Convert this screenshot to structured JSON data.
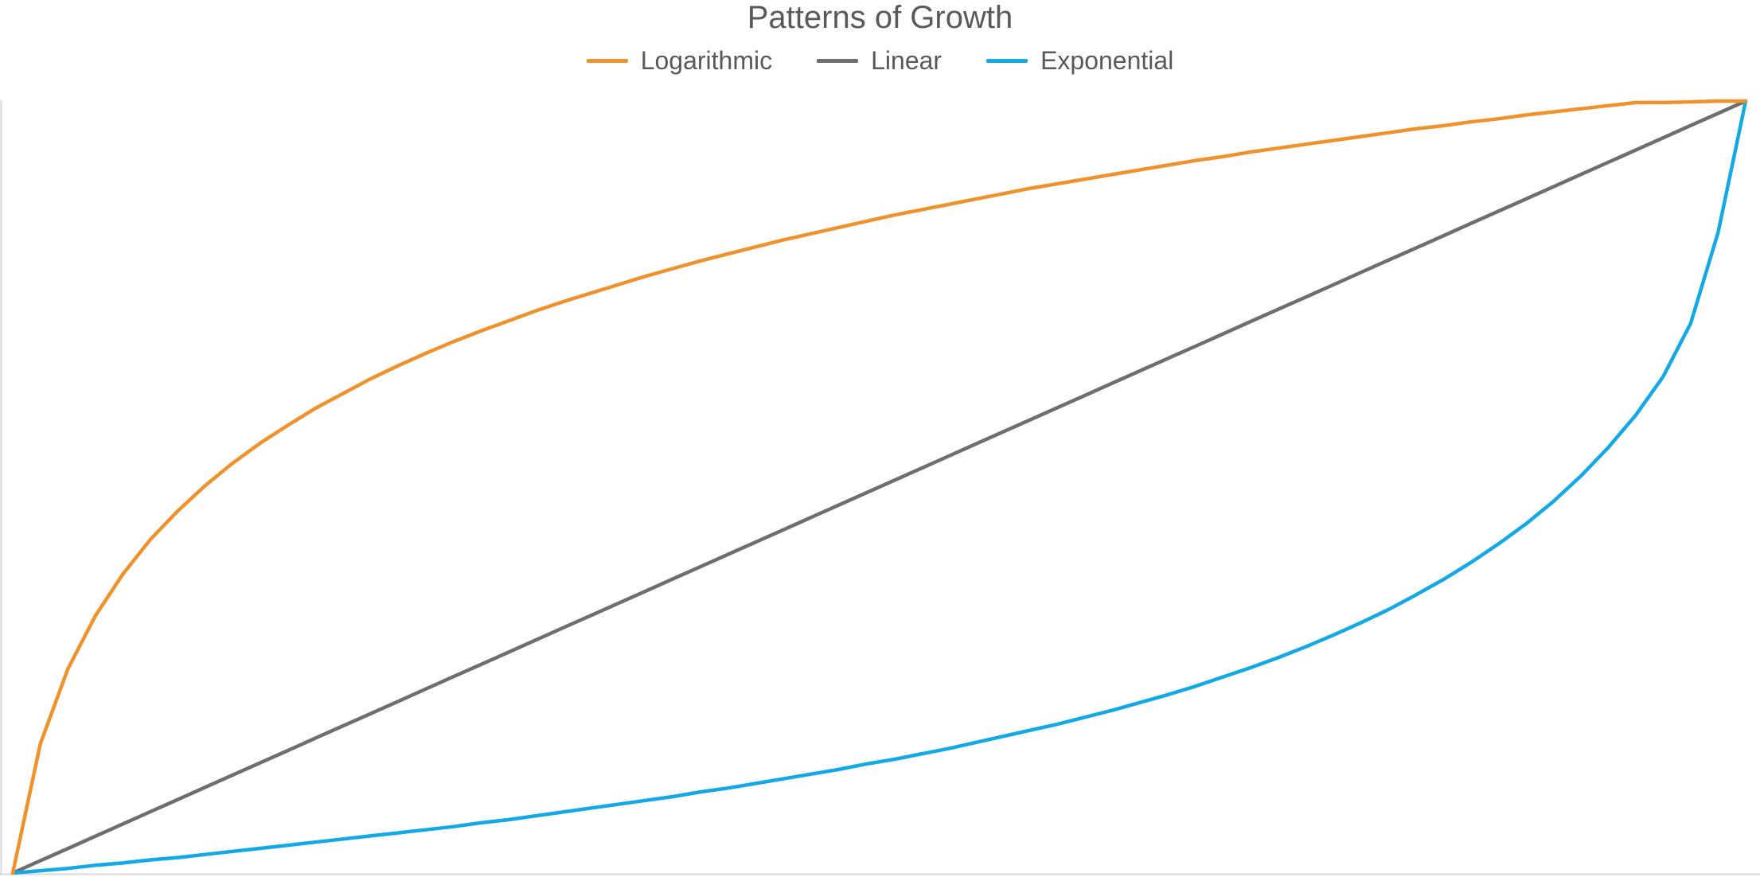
{
  "chart_data": {
    "type": "line",
    "title": "Patterns of Growth",
    "xlabel": "",
    "ylabel": "",
    "x": [
      0,
      1,
      2,
      3,
      4,
      5,
      6,
      7,
      8,
      9,
      10,
      11,
      12,
      13,
      14,
      15,
      16,
      17,
      18,
      19,
      20,
      21,
      22,
      23,
      24,
      25,
      26,
      27,
      28,
      29,
      30,
      31,
      32,
      33,
      34,
      35,
      36,
      37,
      38,
      39,
      40,
      41,
      42,
      43,
      44,
      45,
      46,
      47,
      48,
      49,
      50,
      51,
      52,
      53,
      54,
      55,
      56,
      57,
      58,
      59,
      60,
      61,
      62,
      63
    ],
    "xlim": [
      0,
      63
    ],
    "ylim": [
      0,
      1
    ],
    "grid": false,
    "legend_position": "top-center",
    "series": [
      {
        "name": "Logarithmic",
        "color": "#F0922B",
        "values": [
          0,
          0.167,
          0.264,
          0.333,
          0.387,
          0.432,
          0.469,
          0.502,
          0.531,
          0.557,
          0.58,
          0.602,
          0.621,
          0.64,
          0.657,
          0.673,
          0.688,
          0.702,
          0.715,
          0.728,
          0.74,
          0.751,
          0.762,
          0.773,
          0.783,
          0.793,
          0.802,
          0.811,
          0.82,
          0.828,
          0.836,
          0.844,
          0.852,
          0.859,
          0.866,
          0.873,
          0.88,
          0.887,
          0.893,
          0.899,
          0.905,
          0.911,
          0.917,
          0.923,
          0.928,
          0.934,
          0.939,
          0.944,
          0.949,
          0.954,
          0.959,
          0.964,
          0.968,
          0.973,
          0.977,
          0.982,
          0.986,
          0.99,
          0.994,
          0.998,
          0.998,
          0.999,
          1.0,
          1.0
        ]
      },
      {
        "name": "Linear",
        "color": "#6E6E6E",
        "values": [
          0,
          0.0159,
          0.0317,
          0.0476,
          0.0635,
          0.0794,
          0.0952,
          0.1111,
          0.127,
          0.1429,
          0.1587,
          0.1746,
          0.1905,
          0.2063,
          0.2222,
          0.2381,
          0.254,
          0.2698,
          0.2857,
          0.3016,
          0.3175,
          0.3333,
          0.3492,
          0.3651,
          0.381,
          0.3968,
          0.4127,
          0.4286,
          0.4444,
          0.4603,
          0.4762,
          0.4921,
          0.5079,
          0.5238,
          0.5397,
          0.5556,
          0.5714,
          0.5873,
          0.6032,
          0.619,
          0.6349,
          0.6508,
          0.6667,
          0.6825,
          0.6984,
          0.7143,
          0.7302,
          0.746,
          0.7619,
          0.7778,
          0.7937,
          0.8095,
          0.8254,
          0.8413,
          0.8571,
          0.873,
          0.8889,
          0.9048,
          0.9206,
          0.9365,
          0.9524,
          0.9683,
          0.9841,
          1.0
        ]
      },
      {
        "name": "Exponential",
        "color": "#12A9E6",
        "values": [
          0,
          0.003,
          0.006,
          0.01,
          0.013,
          0.017,
          0.02,
          0.024,
          0.028,
          0.032,
          0.036,
          0.04,
          0.044,
          0.048,
          0.052,
          0.056,
          0.06,
          0.065,
          0.069,
          0.074,
          0.079,
          0.084,
          0.089,
          0.094,
          0.099,
          0.105,
          0.11,
          0.116,
          0.122,
          0.128,
          0.134,
          0.141,
          0.147,
          0.154,
          0.161,
          0.169,
          0.177,
          0.185,
          0.193,
          0.202,
          0.211,
          0.221,
          0.231,
          0.242,
          0.254,
          0.266,
          0.279,
          0.293,
          0.308,
          0.324,
          0.341,
          0.36,
          0.38,
          0.402,
          0.426,
          0.452,
          0.481,
          0.514,
          0.551,
          0.593,
          0.643,
          0.712,
          0.83,
          1.0
        ]
      }
    ]
  }
}
